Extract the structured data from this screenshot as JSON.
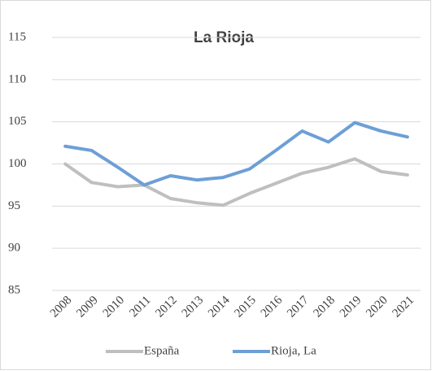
{
  "chart_data": {
    "type": "line",
    "title": "La Rioja",
    "categories": [
      "2008",
      "2009",
      "2010",
      "2011",
      "2012",
      "2013",
      "2014",
      "2015",
      "2016",
      "2017",
      "2018",
      "2019",
      "2020",
      "2021"
    ],
    "series": [
      {
        "name": "España",
        "color": "#bfbfbf",
        "values": [
          100,
          97.8,
          97.3,
          97.5,
          95.9,
          95.4,
          95.1,
          96.5,
          97.7,
          98.9,
          99.6,
          100.6,
          99.1,
          98.7
        ]
      },
      {
        "name": "Rioja, La",
        "color": "#6d9fd6",
        "values": [
          102.1,
          101.6,
          99.6,
          97.5,
          98.6,
          98.1,
          98.4,
          99.4,
          101.6,
          103.9,
          102.6,
          104.9,
          103.9,
          103.2
        ]
      }
    ],
    "ylim": [
      85,
      115
    ],
    "yticks": [
      85,
      90,
      95,
      100,
      105,
      110,
      115
    ],
    "grid": true
  }
}
